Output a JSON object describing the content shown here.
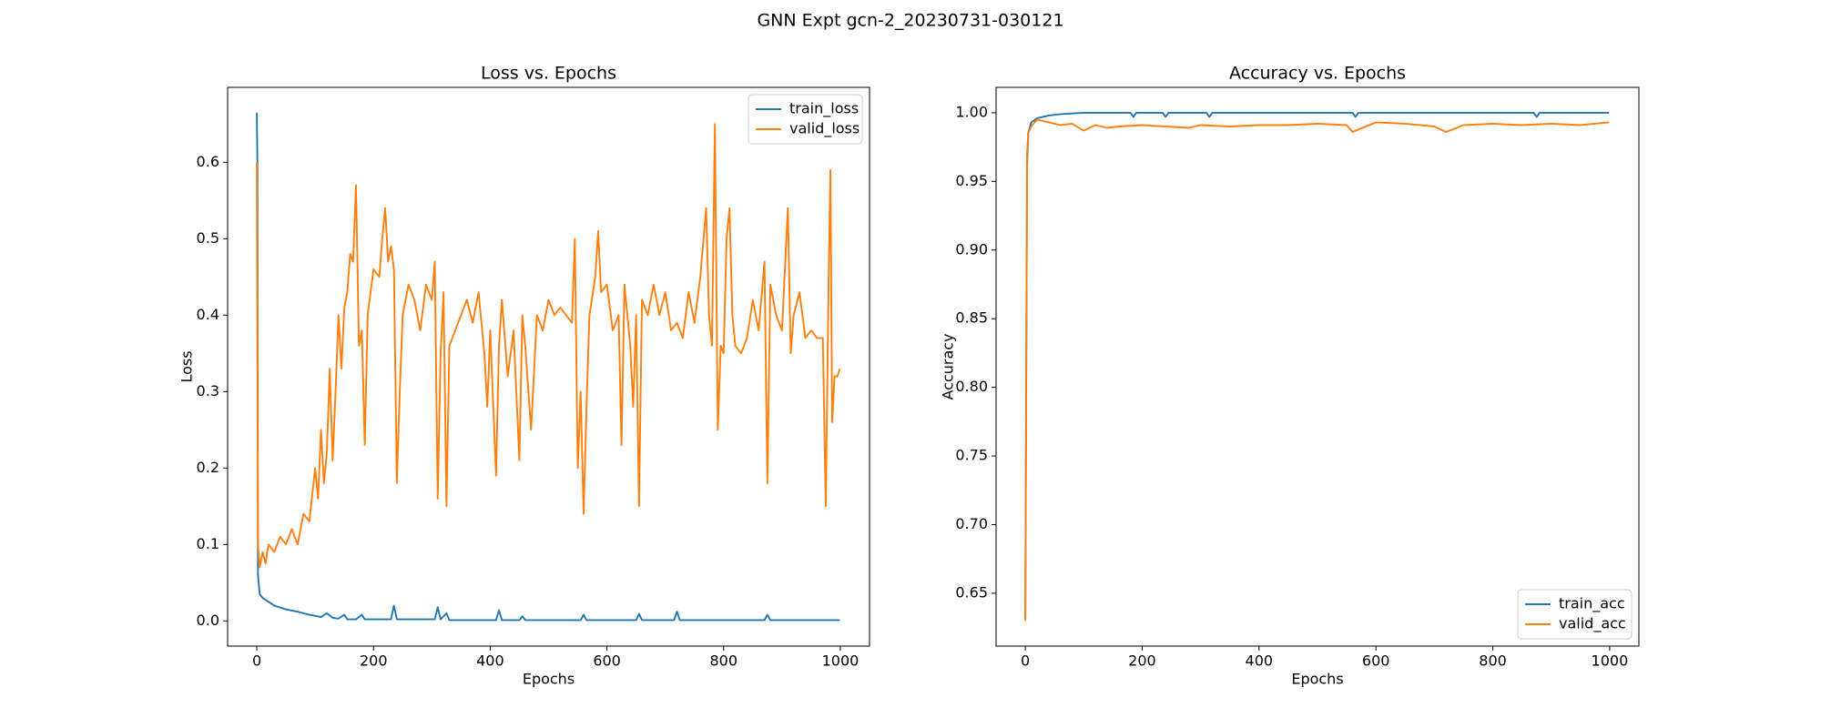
{
  "title": "GNN Expt gcn-2_20230731-030121",
  "chart_data": [
    {
      "type": "line",
      "title": "Loss vs. Epochs",
      "xlabel": "Epochs",
      "ylabel": "Loss",
      "xlim": [
        -50,
        1050
      ],
      "ylim": [
        -0.033,
        0.698
      ],
      "xticks": [
        0,
        200,
        400,
        600,
        800,
        1000
      ],
      "yticks": [
        {
          "value": 0,
          "label": "0.0"
        },
        0.1,
        0.2,
        0.3,
        0.4,
        0.5,
        0.6
      ],
      "legend": "upper right",
      "series": [
        {
          "name": "train_loss",
          "color": "#1f77b4",
          "x": [
            0,
            1,
            2,
            5,
            10,
            20,
            30,
            50,
            70,
            90,
            110,
            120,
            130,
            140,
            150,
            155,
            170,
            180,
            185,
            230,
            235,
            240,
            305,
            310,
            315,
            325,
            330,
            410,
            415,
            420,
            450,
            455,
            460,
            555,
            560,
            565,
            650,
            655,
            660,
            715,
            720,
            725,
            870,
            875,
            880,
            999
          ],
          "values": [
            0.665,
            0.6,
            0.06,
            0.035,
            0.03,
            0.025,
            0.02,
            0.015,
            0.012,
            0.008,
            0.005,
            0.01,
            0.004,
            0.003,
            0.008,
            0.002,
            0.002,
            0.008,
            0.002,
            0.002,
            0.02,
            0.002,
            0.002,
            0.018,
            0.002,
            0.01,
            0.001,
            0.001,
            0.014,
            0.001,
            0.001,
            0.006,
            0.001,
            0.001,
            0.008,
            0.001,
            0.001,
            0.009,
            0.001,
            0.001,
            0.012,
            0.001,
            0.001,
            0.008,
            0.001,
            0.001
          ]
        },
        {
          "name": "valid_loss",
          "color": "#ff7f0e",
          "x": [
            0,
            2,
            5,
            10,
            15,
            20,
            30,
            40,
            50,
            60,
            70,
            80,
            90,
            100,
            105,
            110,
            115,
            120,
            125,
            130,
            135,
            140,
            145,
            150,
            155,
            160,
            165,
            170,
            175,
            180,
            185,
            190,
            200,
            210,
            215,
            220,
            225,
            230,
            235,
            240,
            245,
            250,
            260,
            270,
            280,
            290,
            300,
            305,
            310,
            315,
            320,
            325,
            330,
            340,
            350,
            360,
            370,
            380,
            390,
            395,
            400,
            410,
            415,
            420,
            430,
            440,
            450,
            455,
            460,
            470,
            480,
            490,
            500,
            510,
            520,
            540,
            545,
            550,
            555,
            560,
            565,
            570,
            580,
            585,
            590,
            600,
            610,
            620,
            625,
            630,
            640,
            645,
            650,
            655,
            660,
            670,
            680,
            690,
            700,
            710,
            720,
            730,
            740,
            750,
            760,
            770,
            775,
            780,
            785,
            790,
            795,
            800,
            805,
            810,
            815,
            820,
            830,
            840,
            850,
            860,
            870,
            875,
            880,
            890,
            900,
            910,
            915,
            920,
            930,
            940,
            950,
            960,
            970,
            975,
            980,
            983,
            986,
            990,
            995,
            999
          ],
          "values": [
            0.6,
            0.1,
            0.07,
            0.09,
            0.075,
            0.1,
            0.09,
            0.11,
            0.1,
            0.12,
            0.1,
            0.14,
            0.13,
            0.2,
            0.16,
            0.25,
            0.18,
            0.22,
            0.33,
            0.21,
            0.3,
            0.4,
            0.33,
            0.41,
            0.43,
            0.48,
            0.47,
            0.57,
            0.36,
            0.38,
            0.23,
            0.4,
            0.46,
            0.45,
            0.5,
            0.54,
            0.47,
            0.49,
            0.46,
            0.18,
            0.3,
            0.4,
            0.44,
            0.42,
            0.38,
            0.44,
            0.42,
            0.47,
            0.16,
            0.35,
            0.43,
            0.15,
            0.36,
            0.38,
            0.4,
            0.42,
            0.39,
            0.43,
            0.35,
            0.28,
            0.38,
            0.19,
            0.36,
            0.42,
            0.32,
            0.38,
            0.21,
            0.4,
            0.36,
            0.25,
            0.4,
            0.38,
            0.42,
            0.4,
            0.41,
            0.39,
            0.5,
            0.2,
            0.3,
            0.14,
            0.28,
            0.4,
            0.45,
            0.51,
            0.43,
            0.44,
            0.38,
            0.4,
            0.23,
            0.44,
            0.36,
            0.28,
            0.4,
            0.15,
            0.42,
            0.4,
            0.44,
            0.4,
            0.43,
            0.38,
            0.39,
            0.37,
            0.43,
            0.39,
            0.45,
            0.54,
            0.4,
            0.36,
            0.65,
            0.25,
            0.36,
            0.35,
            0.5,
            0.54,
            0.4,
            0.36,
            0.35,
            0.37,
            0.42,
            0.38,
            0.47,
            0.18,
            0.44,
            0.4,
            0.38,
            0.54,
            0.35,
            0.4,
            0.43,
            0.37,
            0.38,
            0.37,
            0.37,
            0.15,
            0.45,
            0.59,
            0.26,
            0.32,
            0.32,
            0.33
          ]
        }
      ]
    },
    {
      "type": "line",
      "title": "Accuracy vs. Epochs",
      "xlabel": "Epochs",
      "ylabel": "Accuracy",
      "xlim": [
        -50,
        1050
      ],
      "ylim": [
        0.6115,
        1.0185
      ],
      "xticks": [
        0,
        200,
        400,
        600,
        800,
        1000
      ],
      "yticks": [
        0.65,
        {
          "value": 0.7,
          "label": "0.70"
        },
        0.75,
        {
          "value": 0.8,
          "label": "0.80"
        },
        0.85,
        {
          "value": 0.9,
          "label": "0.90"
        },
        0.95,
        {
          "value": 1,
          "label": "1.00"
        }
      ],
      "legend": "lower right",
      "series": [
        {
          "name": "train_acc",
          "color": "#1f77b4",
          "x": [
            0,
            3,
            5,
            10,
            20,
            40,
            60,
            100,
            180,
            185,
            190,
            235,
            240,
            245,
            310,
            315,
            320,
            560,
            565,
            570,
            870,
            875,
            880,
            999
          ],
          "values": [
            0.63,
            0.96,
            0.985,
            0.993,
            0.996,
            0.998,
            0.999,
            1.0,
            1.0,
            0.997,
            1.0,
            1.0,
            0.997,
            1.0,
            1.0,
            0.997,
            1.0,
            1.0,
            0.997,
            1.0,
            1.0,
            0.997,
            1.0,
            1.0
          ]
        },
        {
          "name": "valid_acc",
          "color": "#ff7f0e",
          "x": [
            0,
            3,
            5,
            10,
            20,
            40,
            60,
            80,
            100,
            120,
            140,
            160,
            200,
            240,
            280,
            300,
            350,
            400,
            450,
            500,
            550,
            560,
            600,
            650,
            700,
            720,
            750,
            800,
            850,
            900,
            950,
            999
          ],
          "values": [
            0.63,
            0.97,
            0.985,
            0.99,
            0.995,
            0.993,
            0.991,
            0.992,
            0.987,
            0.991,
            0.989,
            0.99,
            0.991,
            0.99,
            0.989,
            0.991,
            0.99,
            0.991,
            0.991,
            0.992,
            0.991,
            0.986,
            0.993,
            0.992,
            0.99,
            0.986,
            0.991,
            0.992,
            0.991,
            0.992,
            0.991,
            0.993
          ]
        }
      ]
    }
  ]
}
